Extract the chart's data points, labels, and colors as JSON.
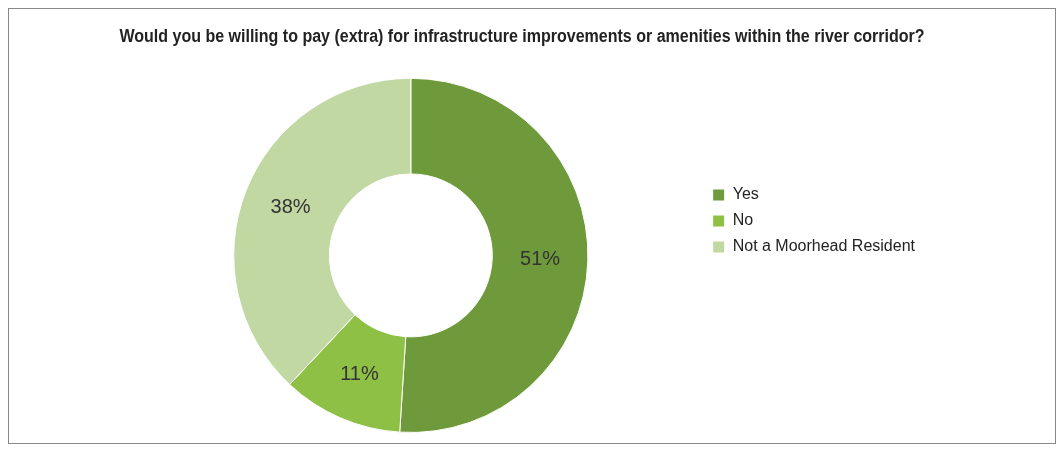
{
  "chart_data": {
    "type": "donut",
    "title": "Would you be willing to pay (extra) for infrastructure improvements or amenities within the river corridor?",
    "categories": [
      "Yes",
      "No",
      "Not a Moorhead Resident"
    ],
    "values": [
      51,
      11,
      38
    ],
    "colors": [
      "#6f9a3c",
      "#8fc046",
      "#c2d8a2"
    ],
    "value_labels": [
      "51%",
      "11%",
      "38%"
    ],
    "legend": "right"
  }
}
